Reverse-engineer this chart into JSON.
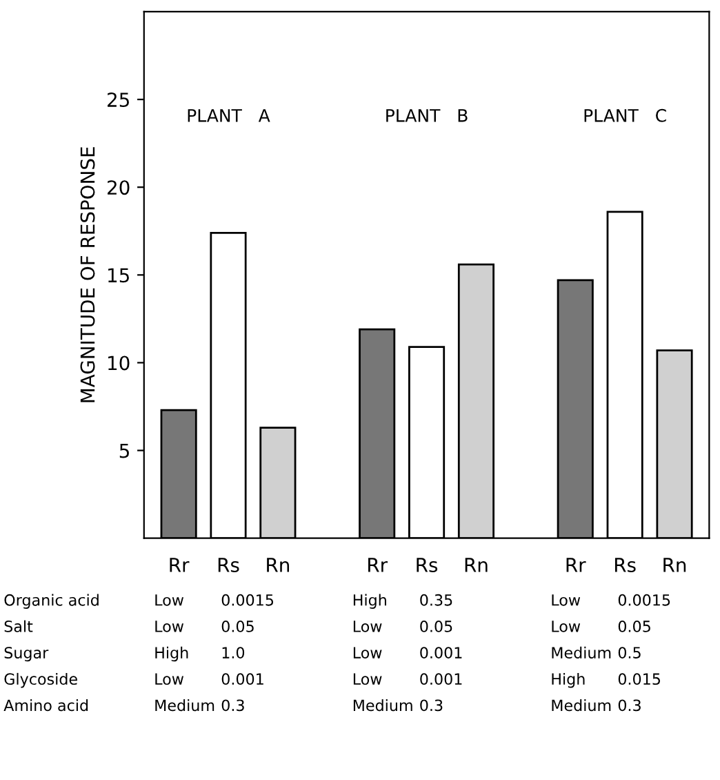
{
  "chart_data": {
    "type": "bar",
    "ylabel": "MAGNITUDE OF RESPONSE",
    "categories": [
      "Rr",
      "Rs",
      "Rn",
      "Rr",
      "Rs",
      "Rn",
      "Rr",
      "Rs",
      "Rn"
    ],
    "values": [
      7.3,
      17.4,
      6.3,
      11.9,
      10.9,
      15.6,
      14.7,
      18.6,
      10.7
    ],
    "colors": [
      "#777777",
      "#ffffff",
      "#d0d0d0",
      "#777777",
      "#ffffff",
      "#d0d0d0",
      "#777777",
      "#ffffff",
      "#d0d0d0"
    ],
    "ylim": [
      0,
      30
    ],
    "yticks": [
      5,
      10,
      15,
      20,
      25
    ],
    "grid": false,
    "legend": false,
    "annotations": [
      "PLANT   A",
      "PLANT   B",
      "PLANT   C",
      "Organic acid",
      "Low",
      "0.0015",
      "High",
      "0.35",
      "Low",
      "0.0015",
      "Salt",
      "Low",
      "0.05",
      "Low",
      "0.05",
      "Low",
      "0.05",
      "Sugar",
      "High",
      "1.0",
      "Low",
      "0.001",
      "Medium",
      "0.5",
      "Glycoside",
      "Low",
      "0.001",
      "Low",
      "0.001",
      "High",
      "0.015",
      "Amino acid",
      "Medium",
      "0.3",
      "Medium",
      "0.3",
      "Medium",
      "0.3"
    ]
  }
}
